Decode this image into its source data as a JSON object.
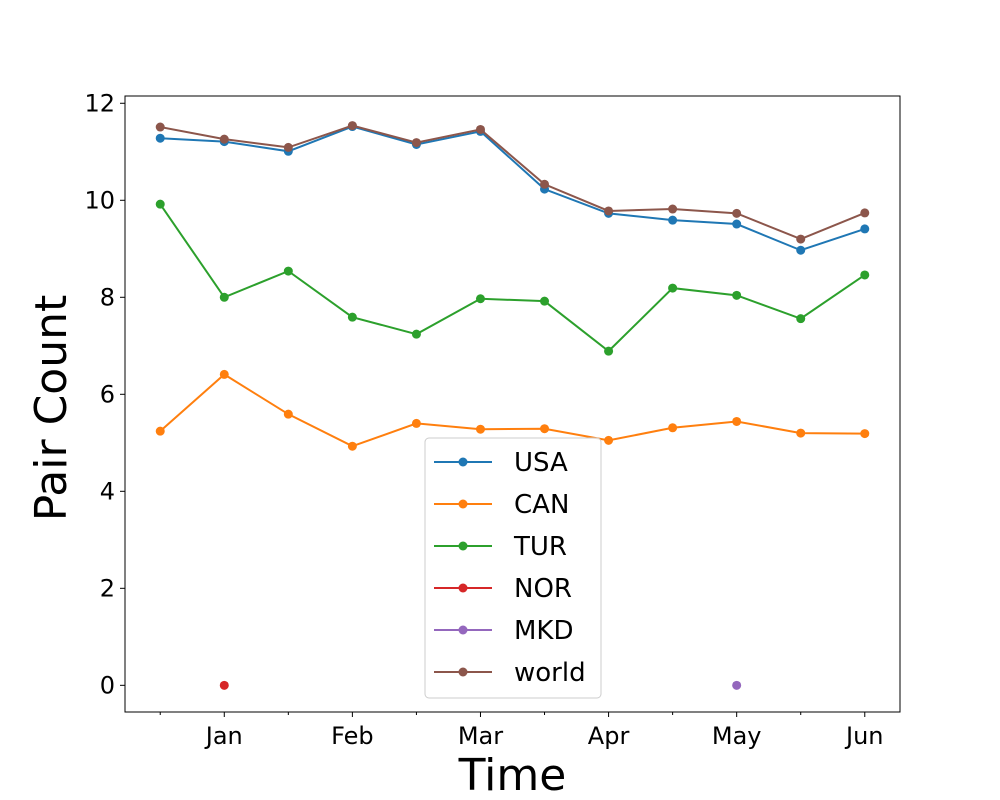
{
  "chart_data": {
    "type": "line",
    "title": "",
    "xlabel": "Time",
    "ylabel": "Pair Count",
    "x": [
      0,
      1,
      2,
      3,
      4,
      5,
      6,
      7,
      8,
      9,
      10,
      11
    ],
    "x_tick_positions": [
      1,
      3,
      5,
      7,
      9,
      11
    ],
    "x_tick_labels": [
      "Jan",
      "Feb",
      "Mar",
      "Apr",
      "May",
      "Jun"
    ],
    "x_minor_ticks": [
      0,
      2,
      4,
      6,
      8,
      10
    ],
    "ylim": [
      -0.55,
      12.15
    ],
    "y_ticks": [
      0,
      2,
      4,
      6,
      8,
      10,
      12
    ],
    "xlim": [
      -0.55,
      11.55
    ],
    "grid": false,
    "legend_position": "bottom-center",
    "series": [
      {
        "name": "USA",
        "color": "#1f77b4",
        "values": [
          11.28,
          11.21,
          11.01,
          11.52,
          11.15,
          11.42,
          10.23,
          9.73,
          9.59,
          9.51,
          8.97,
          9.41
        ]
      },
      {
        "name": "CAN",
        "color": "#ff7f0e",
        "values": [
          5.24,
          6.41,
          5.59,
          4.93,
          5.4,
          5.28,
          5.29,
          5.05,
          5.31,
          5.44,
          5.2,
          5.19
        ]
      },
      {
        "name": "TUR",
        "color": "#2ca02c",
        "values": [
          9.92,
          8.0,
          8.54,
          7.59,
          7.24,
          7.97,
          7.92,
          6.89,
          8.19,
          8.04,
          7.56,
          8.46
        ]
      },
      {
        "name": "NOR",
        "color": "#d62728",
        "values": [
          null,
          0,
          null,
          null,
          null,
          null,
          null,
          null,
          null,
          null,
          null,
          null
        ]
      },
      {
        "name": "MKD",
        "color": "#9467bd",
        "values": [
          null,
          null,
          null,
          null,
          null,
          null,
          null,
          null,
          null,
          0,
          null,
          null
        ]
      },
      {
        "name": "world",
        "color": "#8c564b",
        "values": [
          11.51,
          11.26,
          11.09,
          11.54,
          11.19,
          11.46,
          10.33,
          9.78,
          9.82,
          9.73,
          9.2,
          9.74
        ]
      }
    ]
  }
}
